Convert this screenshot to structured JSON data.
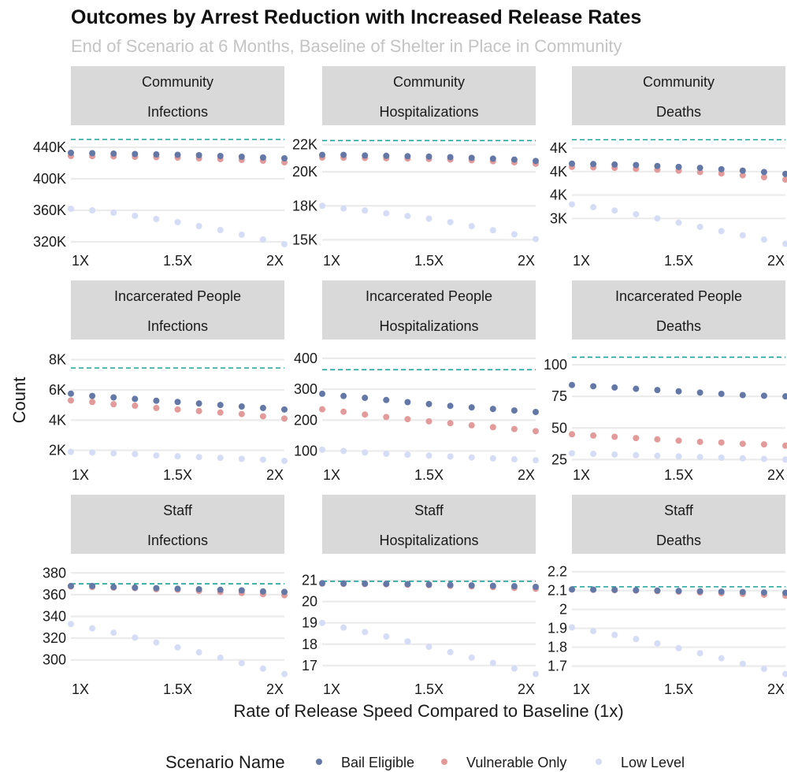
{
  "chart_data": {
    "type": "scatter",
    "title": "Outcomes by Arrest Reduction with Increased Release Rates",
    "subtitle": "End of Scenario at 6 Months, Baseline of Shelter in Place in Community",
    "xlabel": "Rate of Release Speed Compared to Baseline (1x)",
    "ylabel": "Count",
    "x": [
      1.0,
      1.1,
      1.2,
      1.3,
      1.4,
      1.5,
      1.6,
      1.7,
      1.8,
      1.9,
      2.0
    ],
    "x_ticks": [
      1.0,
      1.5,
      2.0
    ],
    "x_tick_labels": [
      "1X",
      "1.5X",
      "2X"
    ],
    "xlim": [
      1.0,
      2.0
    ],
    "legend": {
      "title": "Scenario Name",
      "position": "bottom",
      "entries": [
        "Bail Eligible",
        "Vulnerable Only",
        "Low Level"
      ]
    },
    "colors": {
      "Bail Eligible": "#6478a8",
      "Vulnerable Only": "#e39a9a",
      "Low Level": "#d5dcf6",
      "reference_line": "#1aa39a",
      "strip": "#d9d9d9",
      "grid": "#ebebeb"
    },
    "grid": true,
    "panels": [
      {
        "strip": [
          "Community",
          "Infections"
        ],
        "ylim": [
          314000,
          452000
        ],
        "y_ticks": [
          320000,
          360000,
          400000,
          440000
        ],
        "y_tick_labels": [
          "320K",
          "360K",
          "400K",
          "440K"
        ],
        "reference": 450000,
        "series": [
          {
            "name": "Bail Eligible",
            "values": [
              433000,
              432500,
              432000,
              431500,
              431000,
              430500,
              430000,
              429000,
              428000,
              427000,
              426000
            ]
          },
          {
            "name": "Vulnerable Only",
            "values": [
              429000,
              428800,
              428500,
              428000,
              427500,
              427000,
              426000,
              425000,
              424000,
              423000,
              421000
            ]
          },
          {
            "name": "Low Level",
            "values": [
              362000,
              360000,
              357000,
              353000,
              349000,
              345000,
              340000,
              335000,
              329000,
              323000,
              317000
            ]
          }
        ]
      },
      {
        "strip": [
          "Community",
          "Hospitalizations"
        ],
        "ylim": [
          14500,
          22500
        ],
        "y_ticks": [
          15000,
          17500,
          20000,
          22000
        ],
        "y_tick_labels": [
          "15K",
          "18K",
          "20K",
          "22K"
        ],
        "reference": 22300,
        "series": [
          {
            "name": "Bail Eligible",
            "values": [
              21250,
              21250,
              21200,
              21180,
              21150,
              21120,
              21080,
              21030,
              20970,
              20900,
              20800
            ]
          },
          {
            "name": "Vulnerable Only",
            "values": [
              21050,
              21040,
              21020,
              21000,
              20980,
              20950,
              20900,
              20850,
              20780,
              20700,
              20600
            ]
          },
          {
            "name": "Low Level",
            "values": [
              17500,
              17300,
              17150,
              16950,
              16750,
              16550,
              16300,
              16000,
              15700,
              15400,
              15050
            ]
          }
        ]
      },
      {
        "strip": [
          "Community",
          "Deaths"
        ],
        "ylim": [
          2400,
          4720
        ],
        "y_ticks": [
          3000,
          3500,
          4000,
          4500
        ],
        "y_tick_labels": [
          "3K",
          "4K",
          "4K",
          "4K"
        ],
        "reference": 4680,
        "series": [
          {
            "name": "Bail Eligible",
            "values": [
              4170,
              4160,
              4150,
              4140,
              4120,
              4100,
              4080,
              4050,
              4020,
              3990,
              3950
            ]
          },
          {
            "name": "Vulnerable Only",
            "values": [
              4100,
              4090,
              4080,
              4060,
              4040,
              4020,
              3990,
              3960,
              3920,
              3880,
              3830
            ]
          },
          {
            "name": "Low Level",
            "values": [
              3300,
              3240,
              3170,
              3090,
              3000,
              2910,
              2820,
              2730,
              2640,
              2550,
              2460
            ]
          }
        ]
      },
      {
        "strip": [
          "Incarcerated People",
          "Infections"
        ],
        "ylim": [
          1300,
          8500
        ],
        "y_ticks": [
          2000,
          4000,
          6000,
          8000
        ],
        "y_tick_labels": [
          "2K",
          "4K",
          "6K",
          "8K"
        ],
        "reference": 7450,
        "series": [
          {
            "name": "Bail Eligible",
            "values": [
              5750,
              5600,
              5500,
              5400,
              5280,
              5200,
              5100,
              5000,
              4900,
              4800,
              4700
            ]
          },
          {
            "name": "Vulnerable Only",
            "values": [
              5300,
              5200,
              5050,
              4950,
              4800,
              4700,
              4600,
              4500,
              4400,
              4250,
              4100
            ]
          },
          {
            "name": "Low Level",
            "values": [
              1900,
              1850,
              1800,
              1750,
              1650,
              1600,
              1550,
              1500,
              1430,
              1380,
              1300
            ]
          }
        ]
      },
      {
        "strip": [
          "Incarcerated People",
          "Hospitalizations"
        ],
        "ylim": [
          68,
          420
        ],
        "y_ticks": [
          100,
          200,
          300,
          400
        ],
        "y_tick_labels": [
          "100",
          "200",
          "300",
          "400"
        ],
        "reference": 363,
        "series": [
          {
            "name": "Bail Eligible",
            "values": [
              285,
              278,
              272,
              265,
              258,
              252,
              246,
              241,
              236,
              231,
              226
            ]
          },
          {
            "name": "Vulnerable Only",
            "values": [
              235,
              227,
              218,
              210,
              203,
              196,
              190,
              183,
              177,
              171,
              164
            ]
          },
          {
            "name": "Low Level",
            "values": [
              104,
              100,
              95,
              91,
              88,
              85,
              82,
              79,
              76,
              73,
              70
            ]
          }
        ]
      },
      {
        "strip": [
          "Incarcerated People",
          "Deaths"
        ],
        "ylim": [
          24,
          110
        ],
        "y_ticks": [
          25,
          50,
          75,
          100
        ],
        "y_tick_labels": [
          "25",
          "50",
          "75",
          "100"
        ],
        "reference": 106,
        "series": [
          {
            "name": "Bail Eligible",
            "values": [
              84,
              83,
              82,
              81,
              80,
              79,
              78,
              77,
              76,
              75.5,
              75
            ]
          },
          {
            "name": "Vulnerable Only",
            "values": [
              45,
              44,
              43,
              42,
              41,
              40,
              39,
              38.5,
              37.5,
              37,
              36
            ]
          },
          {
            "name": "Low Level",
            "values": [
              30,
              29.5,
              29,
              28.5,
              28,
              27.5,
              27,
              26.5,
              26,
              25.5,
              25
            ]
          }
        ]
      },
      {
        "strip": [
          "Staff",
          "Infections"
        ],
        "ylim": [
          286,
          386
        ],
        "y_ticks": [
          300,
          320,
          340,
          360,
          380
        ],
        "y_tick_labels": [
          "300",
          "320",
          "340",
          "360",
          "380"
        ],
        "reference": 370,
        "series": [
          {
            "name": "Bail Eligible",
            "values": [
              368,
              368,
              367,
              366.5,
              366,
              365.5,
              365,
              364.5,
              364,
              363,
              362.5
            ]
          },
          {
            "name": "Vulnerable Only",
            "values": [
              367.5,
              367,
              366.5,
              366,
              365,
              364.5,
              363.5,
              362.5,
              361.5,
              360.5,
              359.5
            ]
          },
          {
            "name": "Low Level",
            "values": [
              333,
              329,
              325,
              320.5,
              316,
              311.5,
              307,
              302,
              297,
              292,
              287
            ]
          }
        ]
      },
      {
        "strip": [
          "Staff",
          "Hospitalizations"
        ],
        "ylim": [
          16.55,
          21.65
        ],
        "y_ticks": [
          17,
          18,
          19,
          20,
          21
        ],
        "y_tick_labels": [
          "17",
          "18",
          "19",
          "20",
          "21"
        ],
        "reference": 20.95,
        "series": [
          {
            "name": "Bail Eligible",
            "values": [
              20.86,
              20.85,
              20.84,
              20.83,
              20.82,
              20.8,
              20.78,
              20.76,
              20.74,
              20.72,
              20.69
            ]
          },
          {
            "name": "Vulnerable Only",
            "values": [
              20.84,
              20.83,
              20.82,
              20.81,
              20.79,
              20.77,
              20.74,
              20.71,
              20.68,
              20.64,
              20.6
            ]
          },
          {
            "name": "Low Level",
            "values": [
              19.0,
              18.78,
              18.57,
              18.36,
              18.13,
              17.88,
              17.63,
              17.37,
              17.12,
              16.86,
              16.6
            ]
          }
        ]
      },
      {
        "strip": [
          "Staff",
          "Deaths"
        ],
        "ylim": [
          1.652,
          2.228
        ],
        "y_ticks": [
          1.7,
          1.8,
          1.9,
          2.0,
          2.1,
          2.2
        ],
        "y_tick_labels": [
          "1.7",
          "1.8",
          "1.9",
          "2",
          "2.1",
          "2.2"
        ],
        "reference": 2.12,
        "series": [
          {
            "name": "Bail Eligible",
            "values": [
              2.106,
              2.105,
              2.104,
              2.102,
              2.1,
              2.098,
              2.096,
              2.094,
              2.092,
              2.09,
              2.088
            ]
          },
          {
            "name": "Vulnerable Only",
            "values": [
              2.105,
              2.104,
              2.102,
              2.1,
              2.097,
              2.094,
              2.09,
              2.086,
              2.082,
              2.078,
              2.073
            ]
          },
          {
            "name": "Low Level",
            "values": [
              1.905,
              1.885,
              1.865,
              1.843,
              1.82,
              1.795,
              1.768,
              1.741,
              1.712,
              1.685,
              1.658
            ]
          }
        ]
      }
    ]
  }
}
